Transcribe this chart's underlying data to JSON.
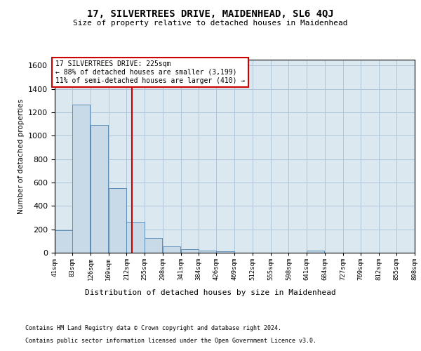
{
  "title": "17, SILVERTREES DRIVE, MAIDENHEAD, SL6 4QJ",
  "subtitle": "Size of property relative to detached houses in Maidenhead",
  "xlabel": "Distribution of detached houses by size in Maidenhead",
  "ylabel": "Number of detached properties",
  "footnote1": "Contains HM Land Registry data © Crown copyright and database right 2024.",
  "footnote2": "Contains public sector information licensed under the Open Government Licence v3.0.",
  "annotation_line1": "17 SILVERTREES DRIVE: 225sqm",
  "annotation_line2": "← 88% of detached houses are smaller (3,199)",
  "annotation_line3": "11% of semi-detached houses are larger (410) →",
  "property_size": 225,
  "bar_color": "#c8d9e8",
  "bar_edge_color": "#5b8db8",
  "vline_color": "#cc0000",
  "bg_color": "#ffffff",
  "plot_bg_color": "#dce8f0",
  "grid_color": "#b0c4d8",
  "bins": [
    41,
    83,
    126,
    169,
    212,
    255,
    298,
    341,
    384,
    426,
    469,
    512,
    555,
    598,
    641,
    684,
    727,
    769,
    812,
    855,
    898
  ],
  "bin_labels": [
    "41sqm",
    "83sqm",
    "126sqm",
    "169sqm",
    "212sqm",
    "255sqm",
    "298sqm",
    "341sqm",
    "384sqm",
    "426sqm",
    "469sqm",
    "512sqm",
    "555sqm",
    "598sqm",
    "641sqm",
    "684sqm",
    "727sqm",
    "769sqm",
    "812sqm",
    "855sqm",
    "898sqm"
  ],
  "counts": [
    195,
    1265,
    1090,
    555,
    265,
    125,
    55,
    30,
    20,
    10,
    0,
    0,
    0,
    0,
    20,
    0,
    0,
    0,
    0,
    0
  ],
  "ylim": [
    0,
    1650
  ],
  "yticks": [
    0,
    200,
    400,
    600,
    800,
    1000,
    1200,
    1400,
    1600
  ]
}
